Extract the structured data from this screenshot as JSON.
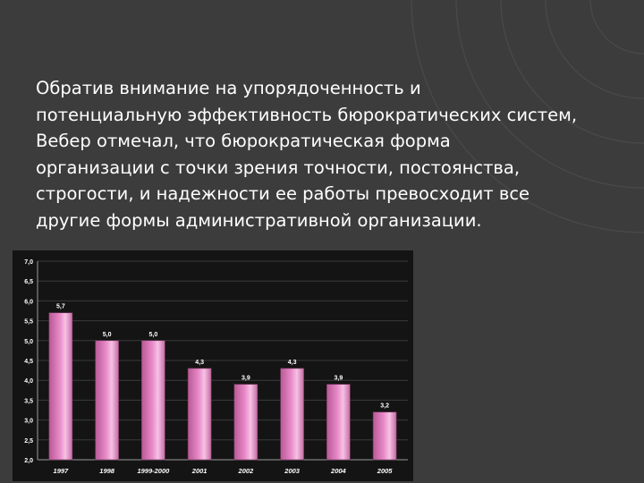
{
  "slide": {
    "text_lines": [
      "Обратив внимание на упорядоченность и",
      "потенциальную эффективность бюрократических систем,",
      "Вебер отмечал, что бюрократическая форма",
      "организации с точки зрения точности, постоянства,",
      "строгости, и надежности ее работы превосходит все",
      "другие формы административной организации."
    ]
  },
  "colors": {
    "background": "#3c3c3c",
    "bar_fill": "#e888c8",
    "text": "#ffffff"
  },
  "chart_data": {
    "type": "bar",
    "title": "",
    "xlabel": "",
    "ylabel": "",
    "categories": [
      "1997",
      "1998",
      "1999-2000",
      "2001",
      "2002",
      "2003",
      "2004",
      "2005"
    ],
    "values": [
      5.7,
      5.0,
      5.0,
      4.3,
      3.9,
      4.3,
      3.9,
      3.2
    ],
    "value_labels": [
      "5,7",
      "5,0",
      "5,0",
      "4,3",
      "3,9",
      "4,3",
      "3,9",
      "3,2"
    ],
    "ylim": [
      2.0,
      7.0
    ],
    "yticks": [
      2.0,
      2.5,
      3.0,
      3.5,
      4.0,
      4.5,
      5.0,
      5.5,
      6.0,
      6.5,
      7.0
    ],
    "ytick_labels": [
      "2,0",
      "2,5",
      "3,0",
      "3,5",
      "4,0",
      "4,5",
      "5,0",
      "5,5",
      "6,0",
      "6,5",
      "7,0"
    ],
    "grid": true,
    "legend": false
  }
}
